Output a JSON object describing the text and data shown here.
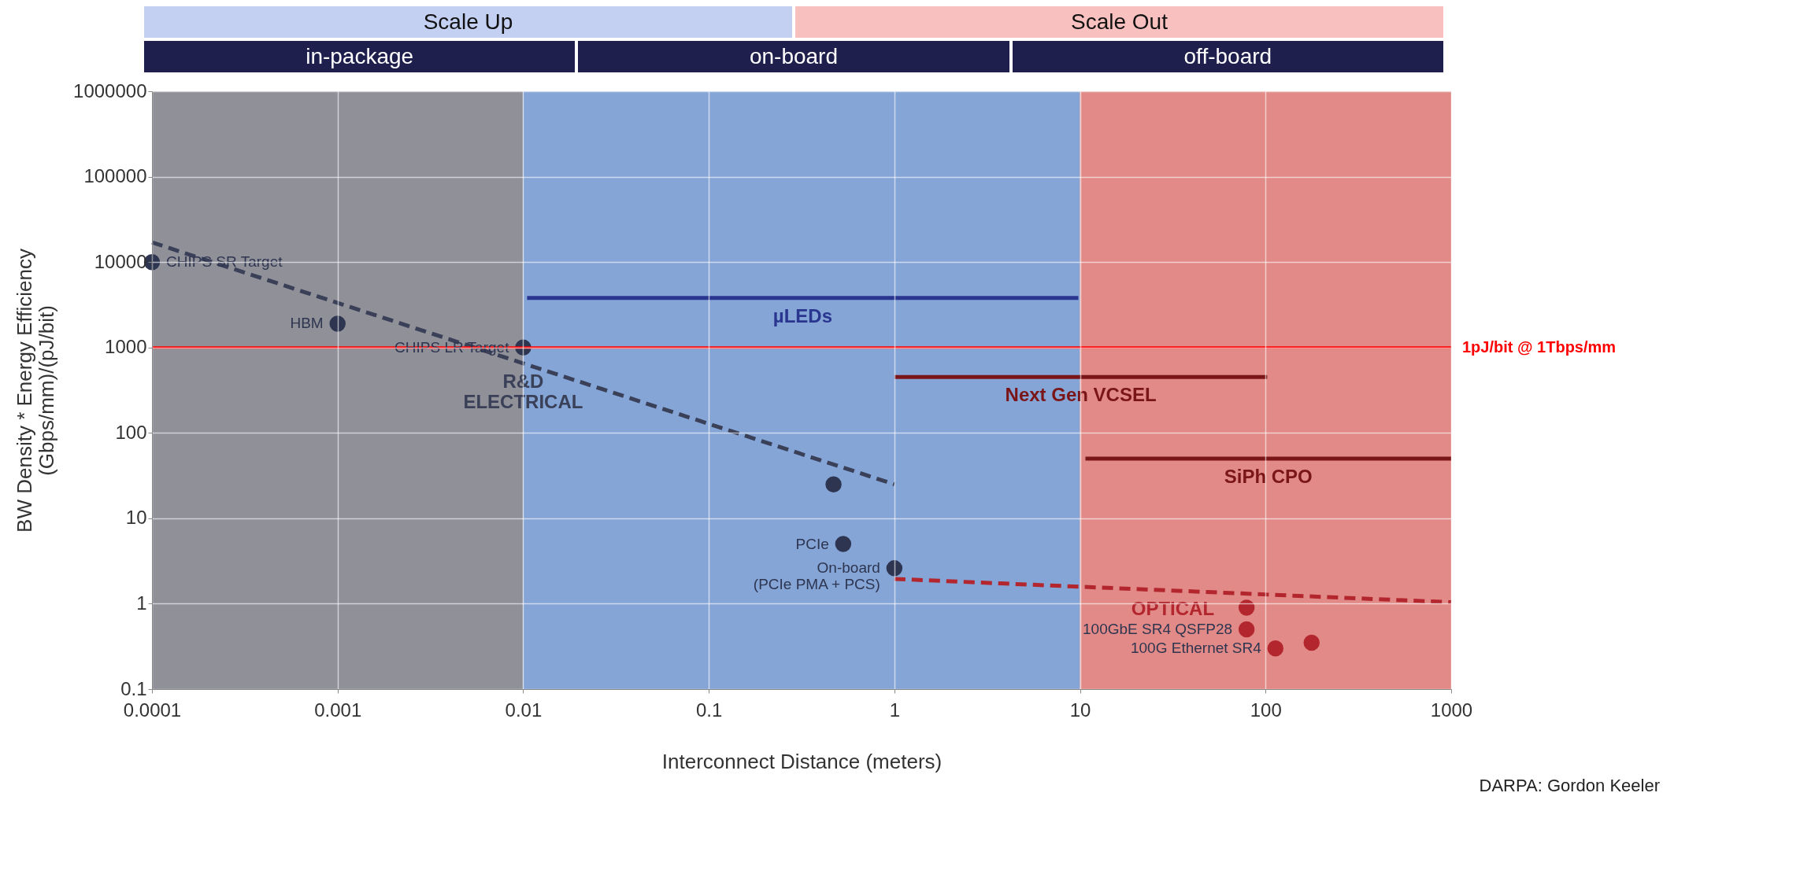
{
  "chart_data": [
    {
      "type": "other",
      "annotations": [
        "Scale Up",
        "Scale Out"
      ],
      "colors": [
        "#c4d0f2",
        "#f9c0c0"
      ]
    },
    {
      "type": "other",
      "annotations": [
        "in-package",
        "on-board",
        "off-board"
      ],
      "colors": [
        "#1f1f4d",
        "#1f1f4d",
        "#1f1f4d"
      ]
    },
    {
      "type": "scatter",
      "xlabel": "Interconnect Distance (meters)",
      "ylabel": "BW Density * Energy Efficiency (Gbps/mm)/(pJ/bit)",
      "log": "xy",
      "grid": true,
      "legend": false,
      "xlim": [
        0.0001,
        1000
      ],
      "ylim": [
        0.1,
        1000000
      ],
      "xticks": [
        0.0001,
        0.001,
        0.01,
        0.1,
        1,
        10,
        100,
        1000
      ],
      "yticks": [
        0.1,
        1,
        10,
        100,
        1000,
        10000,
        100000,
        1000000
      ],
      "series": [
        {
          "type": "scatter",
          "marker": "circle",
          "color": "#2e3550",
          "x": [
            0.0001,
            0.001,
            0.01,
            0.47,
            0.53,
            1
          ],
          "values": [
            10000,
            1900,
            1000,
            25,
            5,
            2.6
          ]
        },
        {
          "type": "scatter",
          "marker": "circle",
          "color": "#b3262e",
          "x": [
            79,
            79,
            113,
            177
          ],
          "values": [
            0.9,
            0.5,
            0.3,
            0.35
          ]
        },
        {
          "type": "line",
          "name": "R&D\nELECTRICAL",
          "marker": "none",
          "line_style": "dashed",
          "color": "#3a4058",
          "x": [
            0.0001,
            1
          ],
          "values": [
            17000,
            25
          ]
        },
        {
          "type": "line",
          "name": "OPTICAL",
          "marker": "none",
          "line_style": "dashed",
          "color": "#b3262e",
          "x": [
            1,
            1000
          ],
          "values": [
            1.95,
            1.04
          ]
        },
        {
          "type": "line",
          "name": "µLEDs",
          "marker": "none",
          "line_style": "solid",
          "color": "#2a3590",
          "x": [
            0.0105,
            9.8
          ],
          "values": [
            3800,
            3800
          ]
        },
        {
          "type": "line",
          "name": "Next Gen VCSEL",
          "marker": "none",
          "line_style": "solid",
          "color": "#7a1518",
          "x": [
            1,
            102
          ],
          "values": [
            450,
            450
          ]
        },
        {
          "type": "line",
          "name": "SiPh CPO",
          "marker": "none",
          "line_style": "solid",
          "color": "#7a1518",
          "x": [
            10.7,
            1000
          ],
          "values": [
            50,
            50
          ]
        }
      ],
      "bands": [
        {
          "axis": "x",
          "from": 0.0001,
          "to": 0.01,
          "color": "#7b7c86"
        },
        {
          "axis": "x",
          "from": 0.01,
          "to": 10,
          "color": "#6f95cf"
        },
        {
          "axis": "x",
          "from": 10,
          "to": 1000,
          "color": "#dc7672"
        }
      ],
      "ref_lines": [
        {
          "axis": "y",
          "value": 1000,
          "label": "1pJ/bit @ 1Tbps/mm",
          "color": "#ff0000",
          "line_style": "solid"
        }
      ],
      "annotations": [
        {
          "text": "CHIPS SR Target",
          "x": 0.0001,
          "y": 10000
        },
        {
          "text": "HBM",
          "x": 0.001,
          "y": 1900
        },
        {
          "text": "CHIPS LR Target",
          "x": 0.01,
          "y": 1000
        },
        {
          "text": "PCIe",
          "x": 0.53,
          "y": 5
        },
        {
          "text": "On-board\n(PCIe  PMA + PCS)",
          "x": 1,
          "y": 2.6
        },
        {
          "text": "100GbE SR4 QSFP28",
          "x": 79,
          "y": 0.5
        },
        {
          "text": "100G Ethernet SR4",
          "x": 113,
          "y": 0.3
        },
        "DARPA:  Gordon Keeler"
      ]
    }
  ]
}
